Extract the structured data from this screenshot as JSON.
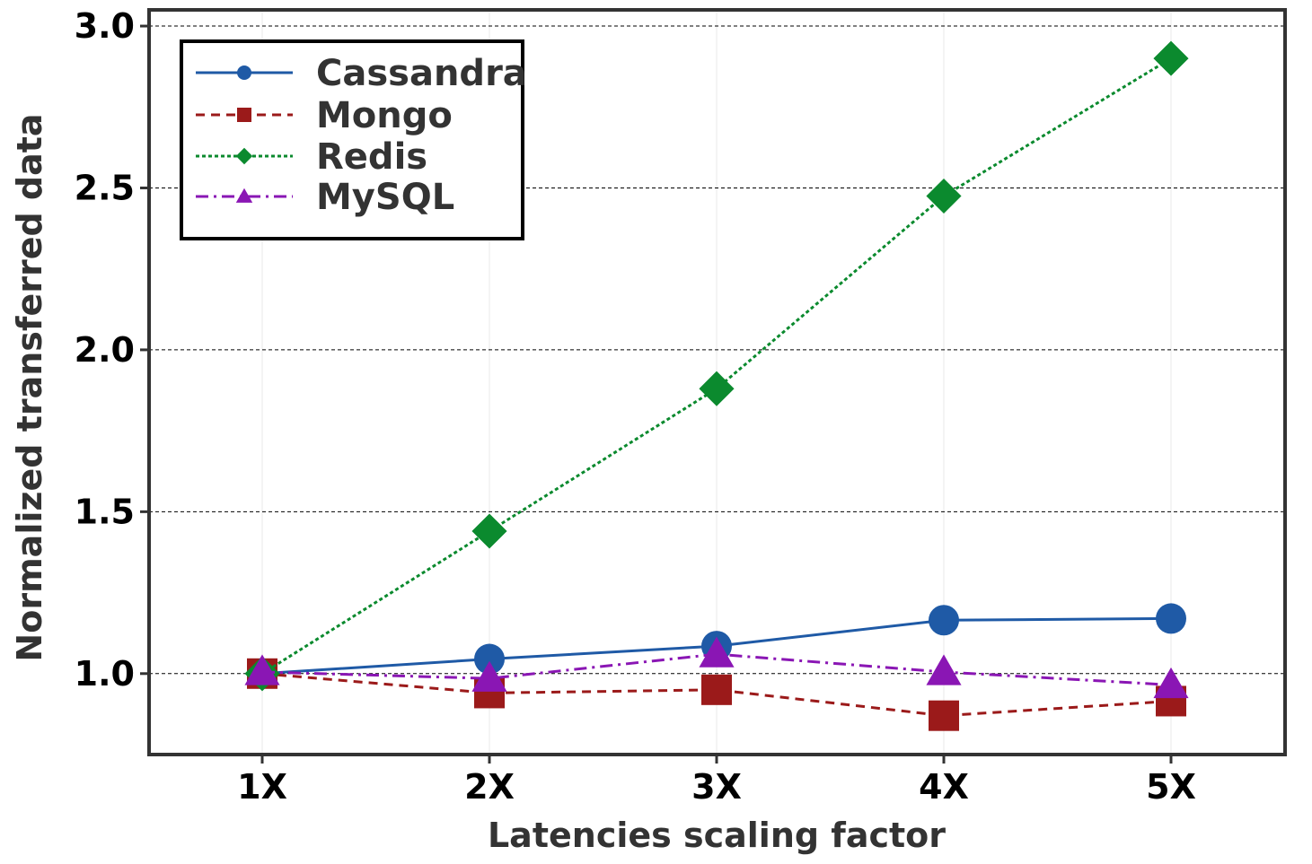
{
  "chart_data": {
    "type": "line",
    "title": "",
    "xlabel": "Latencies scaling  factor",
    "ylabel": "Normalized transferred data",
    "categories": [
      "1X",
      "2X",
      "3X",
      "4X",
      "5X"
    ],
    "ylim": [
      0.75,
      3.05
    ],
    "yticks": [
      "1.0",
      "1.5",
      "2.0",
      "2.5",
      "3.0"
    ],
    "grid": "horizontal dashed",
    "legend_position": "top-left",
    "series": [
      {
        "name": "Cassandra",
        "color": "#1f5aa6",
        "marker": "circle",
        "dash": "solid",
        "values": [
          1.0,
          1.045,
          1.085,
          1.165,
          1.17
        ]
      },
      {
        "name": "Mongo",
        "color": "#9b1a1a",
        "marker": "square",
        "dash": "dashed",
        "values": [
          1.0,
          0.94,
          0.95,
          0.87,
          0.915
        ]
      },
      {
        "name": "Redis",
        "color": "#0b8a2e",
        "marker": "diamond",
        "dash": "dotted",
        "values": [
          1.0,
          1.44,
          1.88,
          2.475,
          2.9
        ]
      },
      {
        "name": "MySQL",
        "color": "#8a16b4",
        "marker": "triangle",
        "dash": "dashdot",
        "values": [
          1.005,
          0.985,
          1.06,
          1.005,
          0.965
        ]
      }
    ]
  }
}
